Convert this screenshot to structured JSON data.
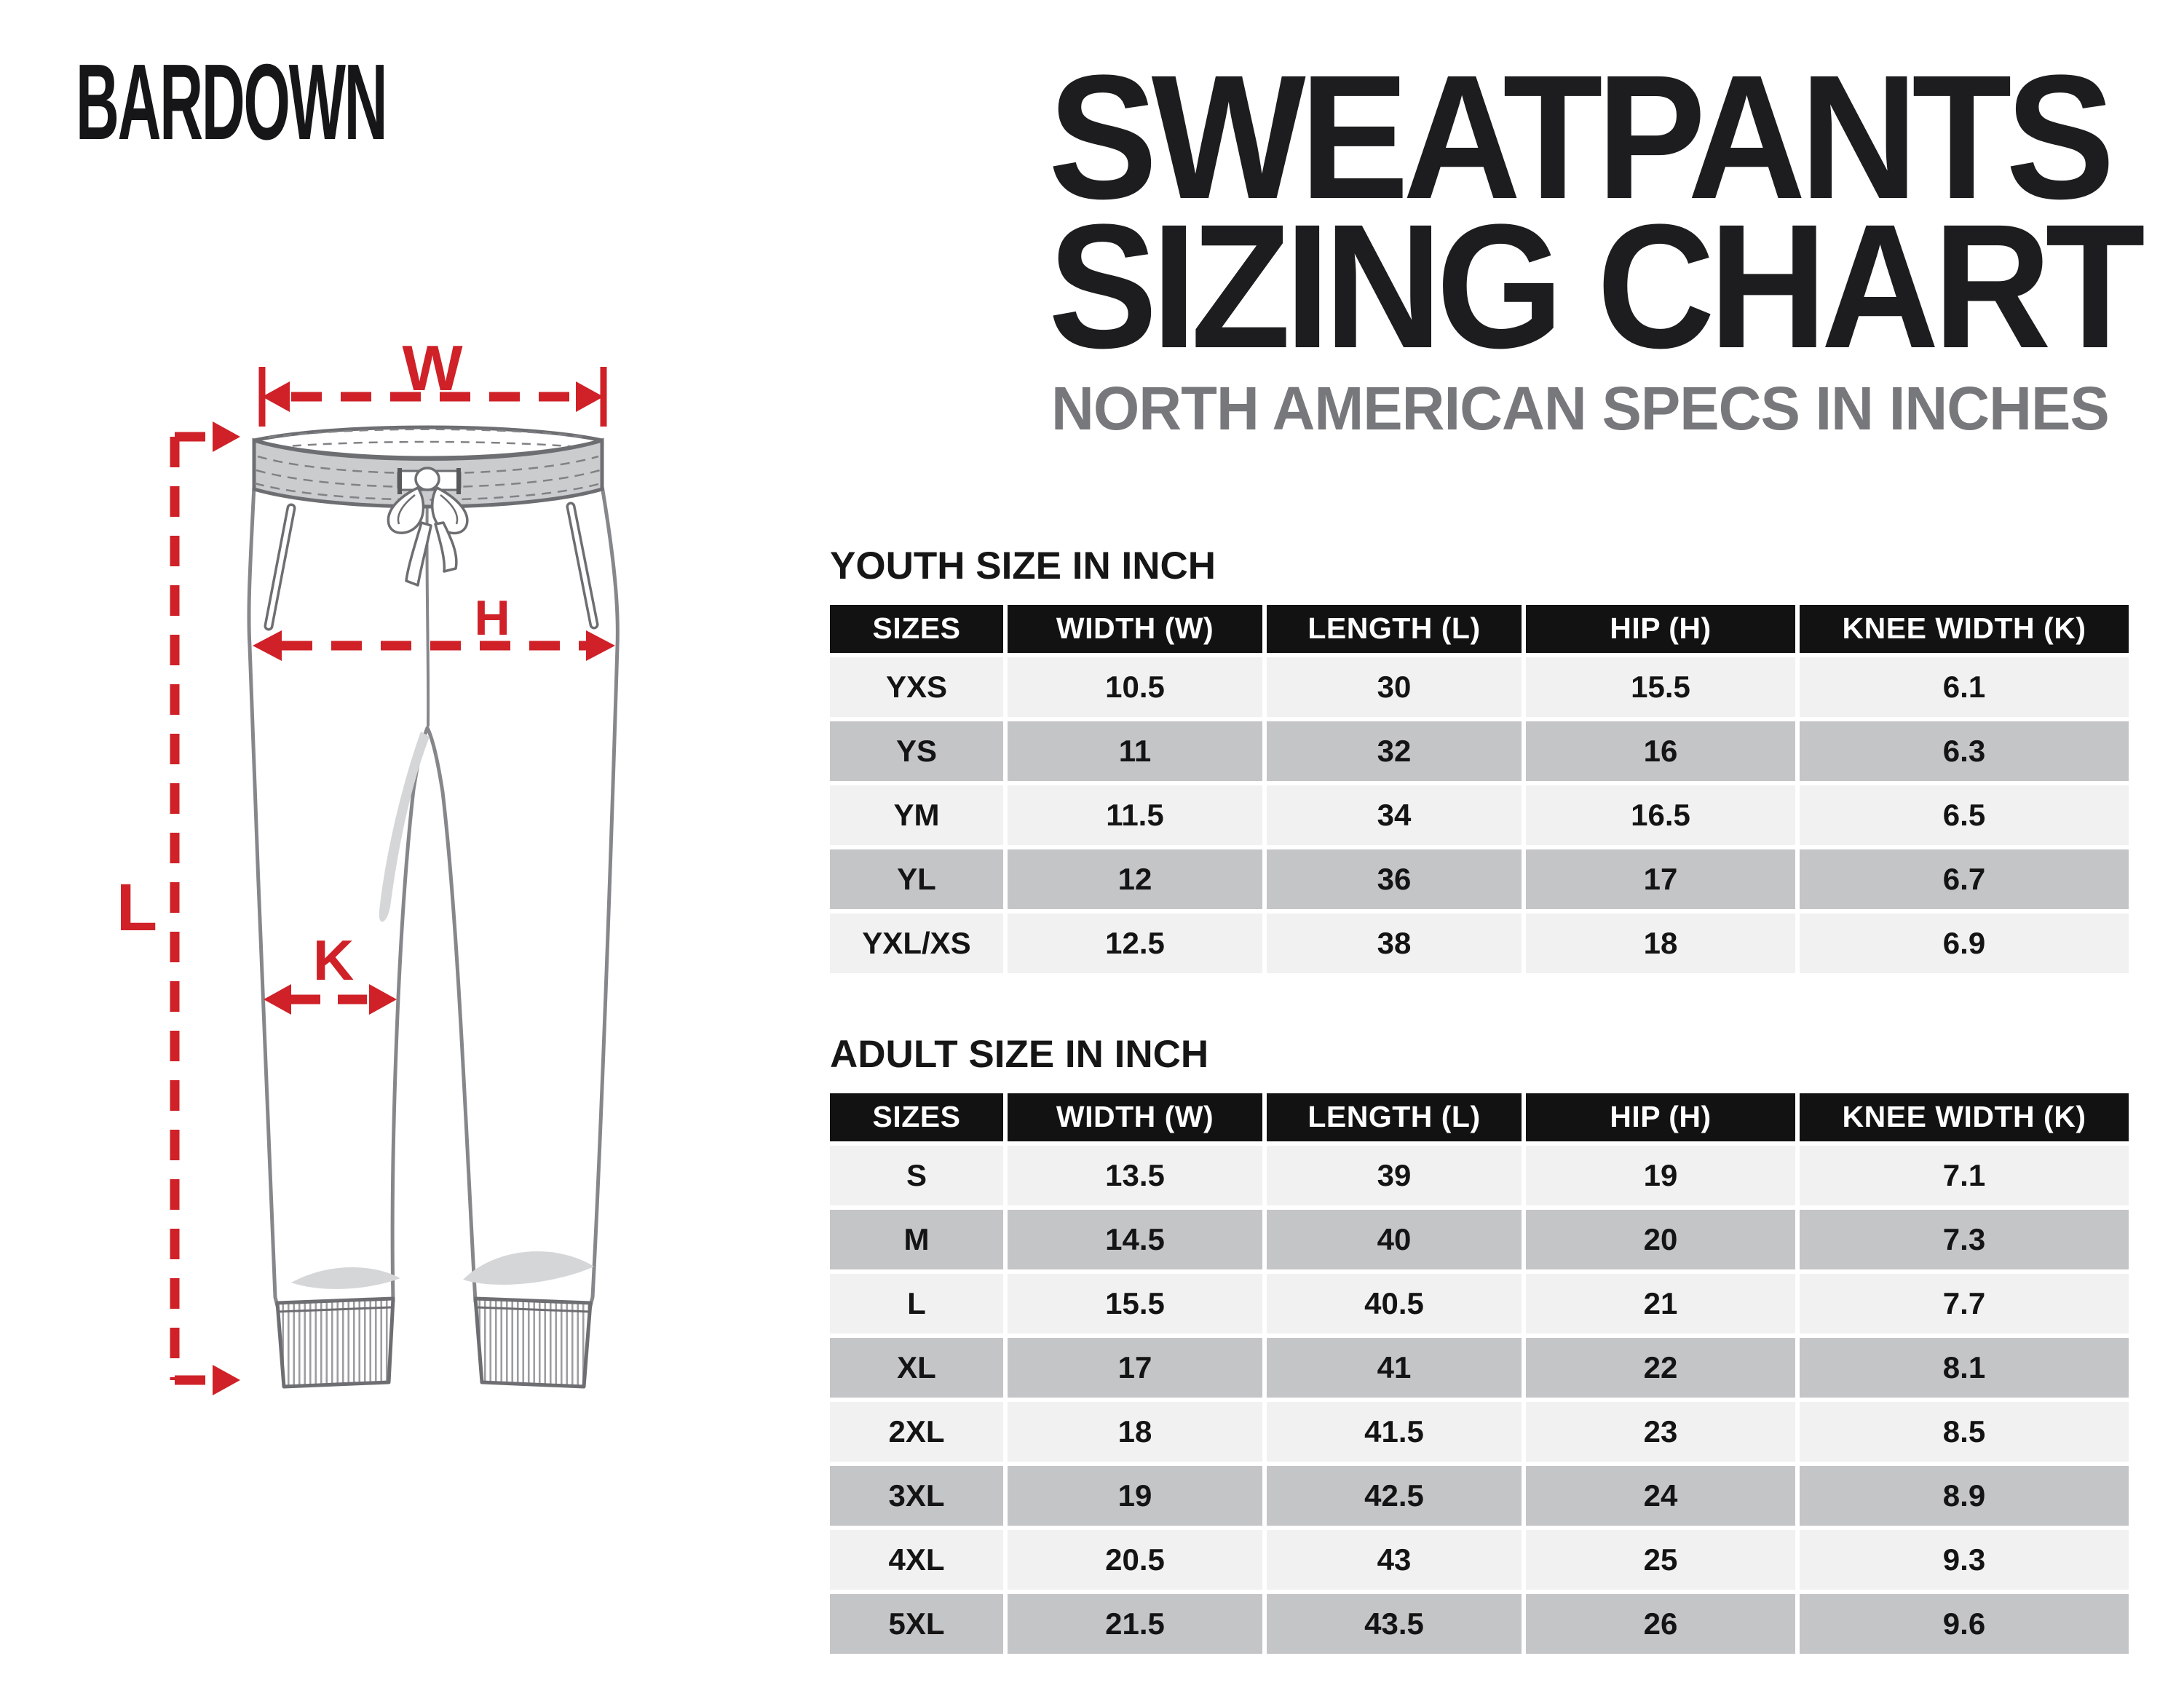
{
  "brand": {
    "logo": "BARDOWN"
  },
  "header": {
    "title_line1": "SWEATPANTS",
    "title_line2": "SIZING CHART",
    "subtitle": "NORTH AMERICAN SPECS IN INCHES"
  },
  "diagram": {
    "measurement_labels": {
      "waist_width": "W",
      "hip": "H",
      "length": "L",
      "knee_width": "K"
    }
  },
  "chart_data": [
    {
      "type": "table",
      "title": "YOUTH SIZE IN INCH",
      "columns": [
        "SIZES",
        "WIDTH (W)",
        "LENGTH (L)",
        "HIP (H)",
        "KNEE WIDTH (K)"
      ],
      "rows": [
        [
          "YXS",
          "10.5",
          "30",
          "15.5",
          "6.1"
        ],
        [
          "YS",
          "11",
          "32",
          "16",
          "6.3"
        ],
        [
          "YM",
          "11.5",
          "34",
          "16.5",
          "6.5"
        ],
        [
          "YL",
          "12",
          "36",
          "17",
          "6.7"
        ],
        [
          "YXL/XS",
          "12.5",
          "38",
          "18",
          "6.9"
        ]
      ]
    },
    {
      "type": "table",
      "title": "ADULT SIZE IN INCH",
      "columns": [
        "SIZES",
        "WIDTH (W)",
        "LENGTH (L)",
        "HIP (H)",
        "KNEE WIDTH (K)"
      ],
      "rows": [
        [
          "S",
          "13.5",
          "39",
          "19",
          "7.1"
        ],
        [
          "M",
          "14.5",
          "40",
          "20",
          "7.3"
        ],
        [
          "L",
          "15.5",
          "40.5",
          "21",
          "7.7"
        ],
        [
          "XL",
          "17",
          "41",
          "22",
          "8.1"
        ],
        [
          "2XL",
          "18",
          "41.5",
          "23",
          "8.5"
        ],
        [
          "3XL",
          "19",
          "42.5",
          "24",
          "8.9"
        ],
        [
          "4XL",
          "20.5",
          "43",
          "25",
          "9.3"
        ],
        [
          "5XL",
          "21.5",
          "43.5",
          "26",
          "9.6"
        ]
      ]
    }
  ],
  "colors": {
    "accent_red": "#cf2127",
    "header_black": "#121212",
    "row_light": "#f1f1f2",
    "row_dark": "#c4c5c7",
    "subtitle_gray": "#77787b",
    "outline_gray": "#85878a"
  }
}
